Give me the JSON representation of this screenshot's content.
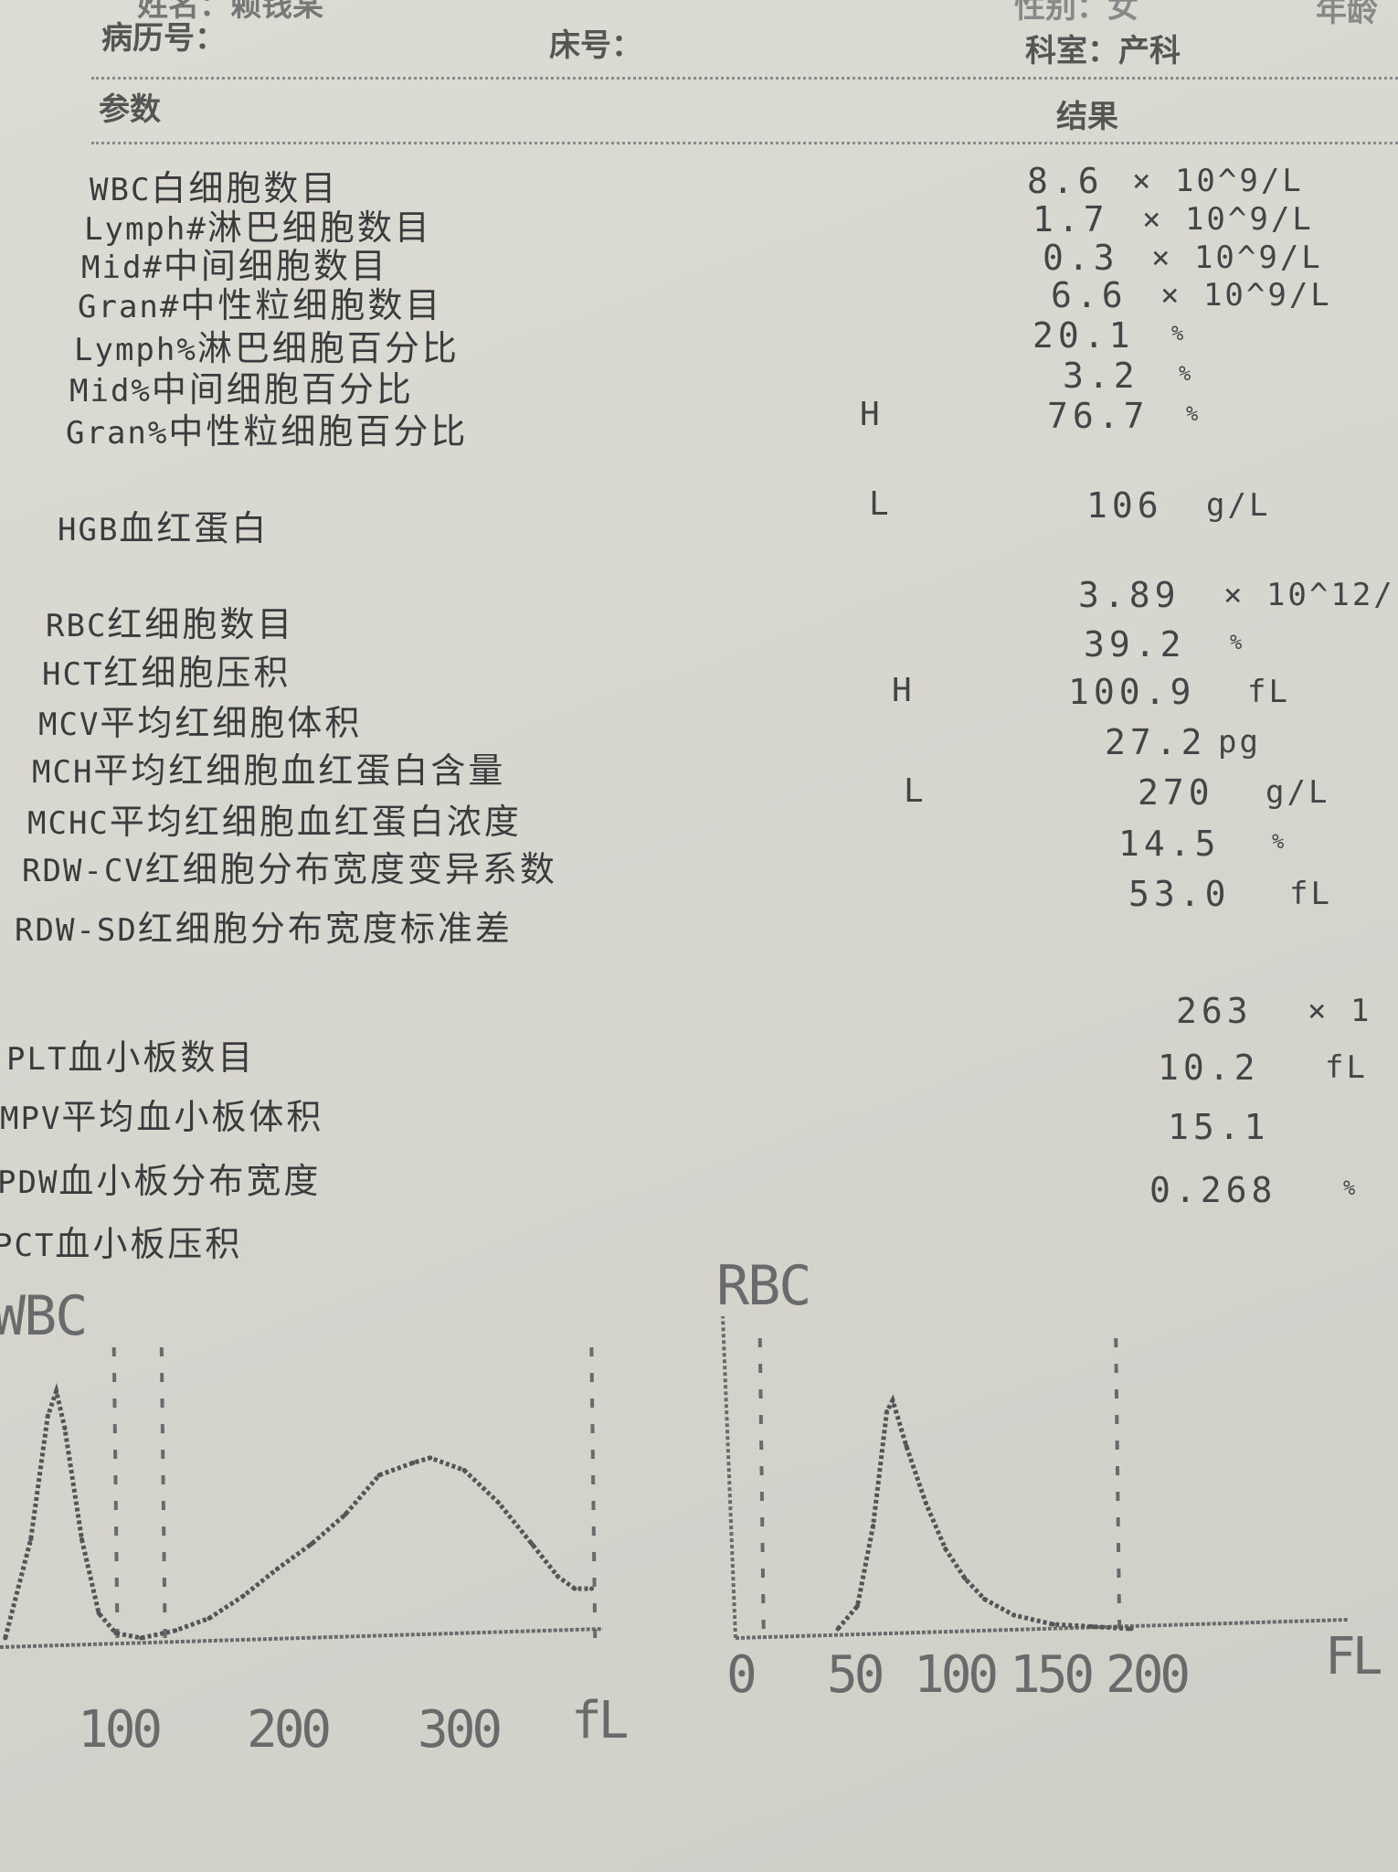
{
  "header": {
    "name_label": "姓名：",
    "name_value": "赖钱某",
    "gender_label": "性别：",
    "gender_value": "女",
    "age_label": "年龄",
    "record_label": "病历号：",
    "bed_label": "床号：",
    "dept_label": "科室：",
    "dept_value": "产科"
  },
  "table": {
    "col_param": "参数",
    "col_result": "结果",
    "rows": [
      {
        "code": "WBC",
        "name": "白细胞数目",
        "flag": "",
        "value": "8.6",
        "unit": "× 10^9/L"
      },
      {
        "code": "Lymph#",
        "name": "淋巴细胞数目",
        "flag": "",
        "value": "1.7",
        "unit": "× 10^9/L"
      },
      {
        "code": "Mid#",
        "name": "中间细胞数目",
        "flag": "",
        "value": "0.3",
        "unit": "× 10^9/L"
      },
      {
        "code": "Gran#",
        "name": "中性粒细胞数目",
        "flag": "",
        "value": "6.6",
        "unit": "× 10^9/L"
      },
      {
        "code": "Lymph%",
        "name": "淋巴细胞百分比",
        "flag": "",
        "value": "20.1",
        "unit": "%"
      },
      {
        "code": "Mid%",
        "name": "中间细胞百分比",
        "flag": "",
        "value": "3.2",
        "unit": "%"
      },
      {
        "code": "Gran%",
        "name": "中性粒细胞百分比",
        "flag": "H",
        "value": "76.7",
        "unit": "%"
      },
      {
        "code": "HGB",
        "name": "血红蛋白",
        "flag": "L",
        "value": "106",
        "unit": "g/L"
      },
      {
        "code": "RBC",
        "name": "红细胞数目",
        "flag": "",
        "value": "3.89",
        "unit": "× 10^12/"
      },
      {
        "code": "HCT",
        "name": "红细胞压积",
        "flag": "",
        "value": "39.2",
        "unit": "%"
      },
      {
        "code": "MCV",
        "name": "平均红细胞体积",
        "flag": "H",
        "value": "100.9",
        "unit": "fL"
      },
      {
        "code": "MCH",
        "name": "平均红细胞血红蛋白含量",
        "flag": "",
        "value": "27.2",
        "unit": "pg"
      },
      {
        "code": "MCHC",
        "name": "平均红细胞血红蛋白浓度",
        "flag": "L",
        "value": "270",
        "unit": "g/L"
      },
      {
        "code": "RDW-CV",
        "name": "红细胞分布宽度变异系数",
        "flag": "",
        "value": "14.5",
        "unit": "%"
      },
      {
        "code": "RDW-SD",
        "name": "红细胞分布宽度标准差",
        "flag": "",
        "value": "53.0",
        "unit": "fL"
      },
      {
        "code": "PLT",
        "name": "血小板数目",
        "flag": "",
        "value": "263",
        "unit": "× 1"
      },
      {
        "code": "MPV",
        "name": "平均血小板体积",
        "flag": "",
        "value": "10.2",
        "unit": "fL"
      },
      {
        "code": "PDW",
        "name": "血小板分布宽度",
        "flag": "",
        "value": "15.1",
        "unit": ""
      },
      {
        "code": "PCT",
        "name": "血小板压积",
        "flag": "",
        "value": "0.268",
        "unit": "%"
      }
    ]
  },
  "chart_data": [
    {
      "type": "line",
      "title": "WBC",
      "xlabel": "fL",
      "x_ticks": [
        "100",
        "200",
        "300"
      ],
      "xlim": [
        0,
        380
      ],
      "grid": false,
      "discriminators_fL": [
        96,
        124,
        377
      ],
      "x": [
        30,
        45,
        55,
        60,
        65,
        75,
        85,
        95,
        110,
        130,
        150,
        170,
        190,
        210,
        230,
        250,
        270,
        280,
        300,
        320,
        340,
        355,
        365,
        375
      ],
      "values": [
        0,
        0.4,
        0.9,
        1.0,
        0.85,
        0.4,
        0.1,
        0.02,
        0,
        0.03,
        0.08,
        0.17,
        0.28,
        0.38,
        0.5,
        0.66,
        0.71,
        0.73,
        0.68,
        0.55,
        0.38,
        0.25,
        0.2,
        0.2
      ]
    },
    {
      "type": "line",
      "title": "RBC",
      "xlabel": "FL",
      "x_ticks": [
        "0",
        "50",
        "100",
        "150",
        "200"
      ],
      "xlim": [
        0,
        300
      ],
      "grid": false,
      "discriminators_fL": [
        12,
        194
      ],
      "x": [
        50,
        60,
        68,
        75,
        78,
        85,
        95,
        105,
        115,
        125,
        140,
        160,
        180,
        200
      ],
      "values": [
        0,
        0.1,
        0.45,
        0.95,
        1.0,
        0.8,
        0.55,
        0.35,
        0.22,
        0.13,
        0.06,
        0.02,
        0.01,
        0
      ]
    }
  ]
}
